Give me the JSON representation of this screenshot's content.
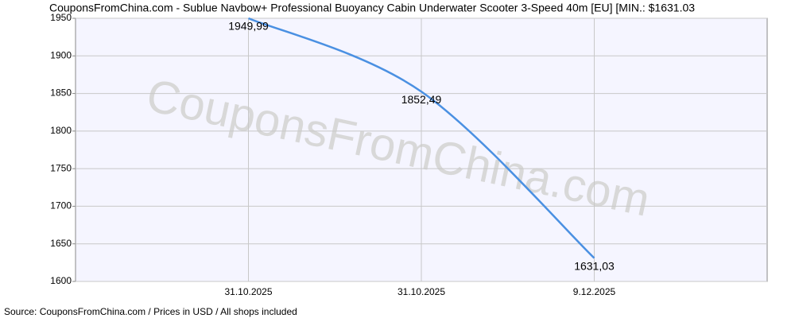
{
  "chart_data": {
    "type": "line",
    "title": "CouponsFromChina.com - Sublue Navbow+ Professional Buoyancy Cabin Underwater Scooter 3-Speed 40m [EU] [MIN.: $1631.03",
    "watermark": "CouponsFromChina.com",
    "source": "Source: CouponsFromChina.com / Prices in USD / All shops included",
    "categories": [
      null,
      "31.10.2025",
      "31.10.2025",
      "9.12.2025",
      null
    ],
    "values": [
      null,
      1949.99,
      1852.49,
      1631.03,
      null
    ],
    "value_labels": [
      null,
      "1949,99",
      "1852,49",
      "1631,03",
      null
    ],
    "color": "#4a90e2",
    "ylim": [
      1600,
      1950
    ],
    "yticks": [
      1600,
      1650,
      1700,
      1750,
      1800,
      1850,
      1900,
      1950
    ],
    "grid": true
  }
}
